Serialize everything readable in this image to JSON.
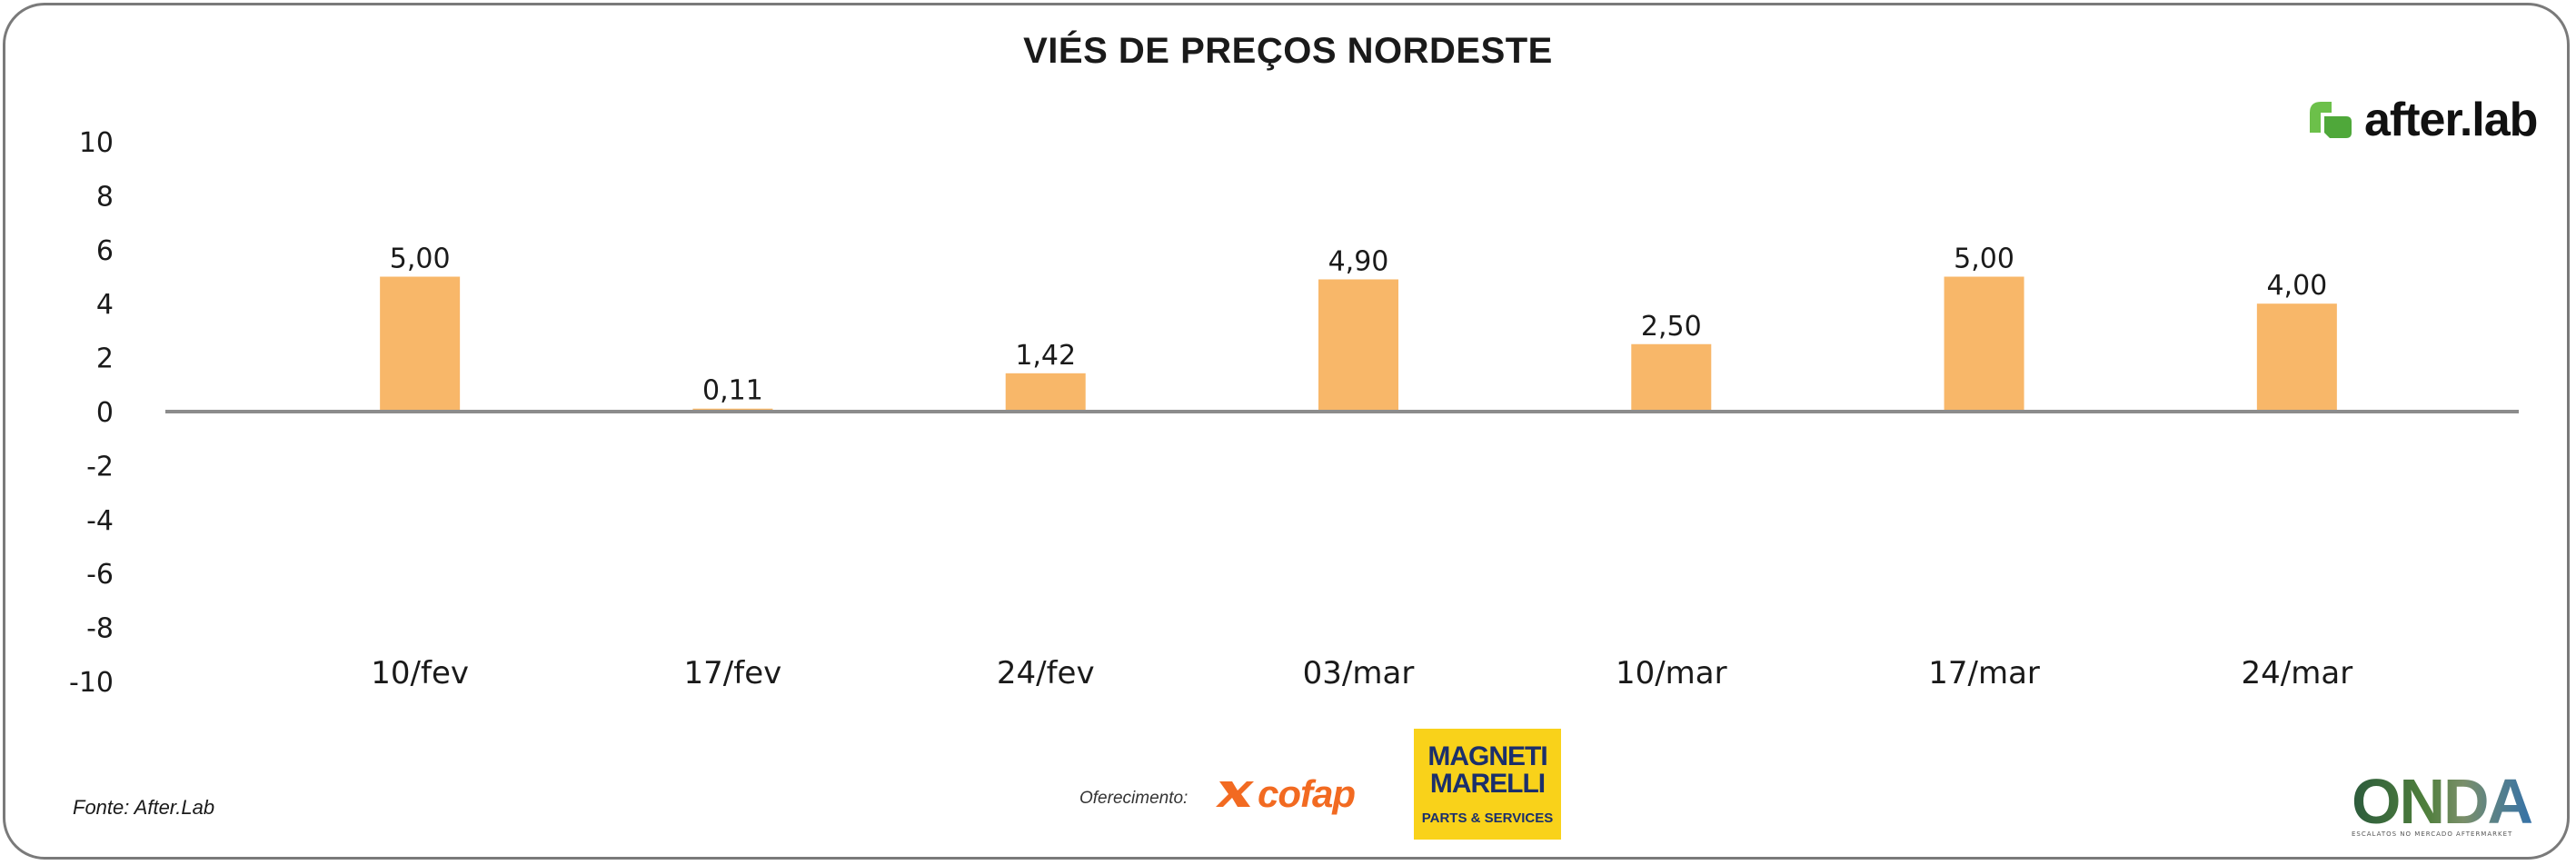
{
  "chart_data": {
    "type": "bar",
    "title": "VIÉS DE PREÇOS NORDESTE",
    "categories": [
      "10/fev",
      "17/fev",
      "24/fev",
      "03/mar",
      "10/mar",
      "17/mar",
      "24/mar"
    ],
    "values": [
      5.0,
      0.11,
      1.42,
      4.9,
      2.5,
      5.0,
      4.0
    ],
    "data_labels": [
      "5,00",
      "0,11",
      "1,42",
      "4,90",
      "2,50",
      "5,00",
      "4,00"
    ],
    "yticks": [
      10,
      8,
      6,
      4,
      2,
      0,
      -2,
      -4,
      -6,
      -8,
      -10
    ],
    "ylim": [
      -10,
      10
    ],
    "bar_color": "#f8b769",
    "grid": false,
    "xlabel": "",
    "ylabel": ""
  },
  "source_text": "Fonte: After.Lab",
  "logos": {
    "afterlab": "after.lab",
    "afterlab_color": "#6cc04a",
    "sponsor_label": "Oferecimento:",
    "cofap": "cofap",
    "marelli_brand": "MAGNETI MARELLI",
    "marelli_sub": "PARTS & SERVICES",
    "onda": "ONDA",
    "onda_tagline": "ESCALATOS NO MERCADO AFTERMARKET"
  }
}
